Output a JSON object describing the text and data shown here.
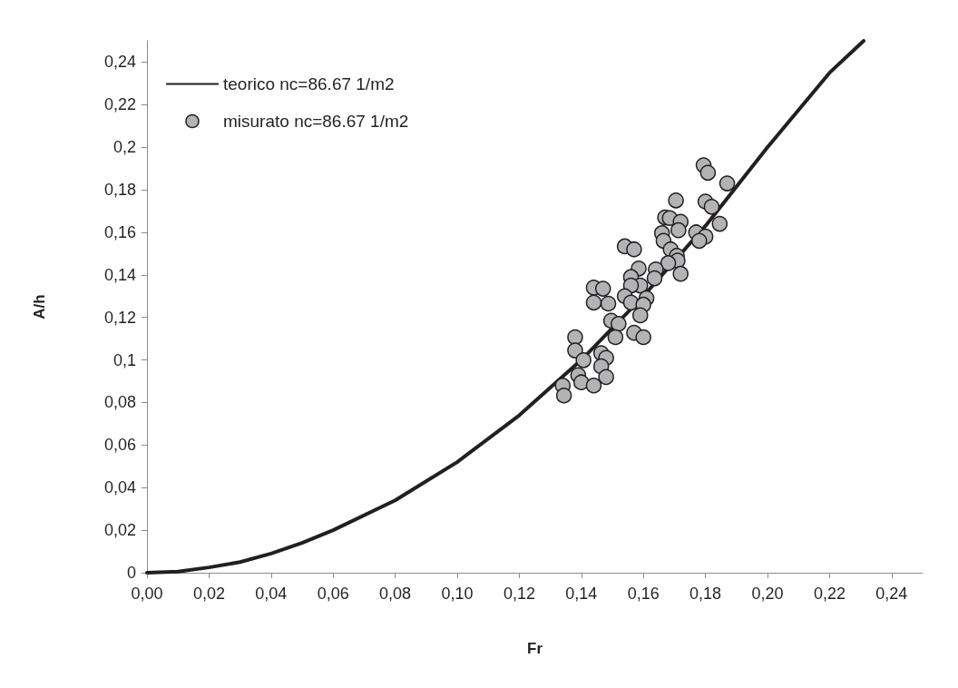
{
  "chart_data": {
    "type": "scatter",
    "xlabel": "Fr",
    "ylabel": "A/h",
    "xlim": [
      0,
      0.25
    ],
    "ylim": [
      0,
      0.25
    ],
    "xticks": [
      {
        "value": 0,
        "label": "0,00"
      },
      {
        "value": 0.02,
        "label": "0,02"
      },
      {
        "value": 0.04,
        "label": "0,04"
      },
      {
        "value": 0.06,
        "label": "0,06"
      },
      {
        "value": 0.08,
        "label": "0,08"
      },
      {
        "value": 0.1,
        "label": "0,10"
      },
      {
        "value": 0.12,
        "label": "0,12"
      },
      {
        "value": 0.14,
        "label": "0,14"
      },
      {
        "value": 0.16,
        "label": "0,16"
      },
      {
        "value": 0.18,
        "label": "0,18"
      },
      {
        "value": 0.2,
        "label": "0,20"
      },
      {
        "value": 0.22,
        "label": "0,22"
      },
      {
        "value": 0.24,
        "label": "0,24"
      }
    ],
    "yticks": [
      0,
      {
        "value": 0.02,
        "label": "0,02"
      },
      {
        "value": 0.04,
        "label": "0,04"
      },
      {
        "value": 0.06,
        "label": "0,06"
      },
      {
        "value": 0.08,
        "label": "0,08"
      },
      {
        "value": 0.1,
        "label": "0,1"
      },
      {
        "value": 0.12,
        "label": "0,12"
      },
      {
        "value": 0.14,
        "label": "0,14"
      },
      {
        "value": 0.16,
        "label": "0,16"
      },
      {
        "value": 0.18,
        "label": "0,18"
      },
      {
        "value": 0.2,
        "label": "0,2"
      },
      {
        "value": 0.22,
        "label": "0,22"
      },
      {
        "value": 0.24,
        "label": "0,24"
      }
    ],
    "grid": false,
    "legend": "top left",
    "marker": "circle",
    "series": [
      {
        "name": "teorico nc=86.67 1/m2",
        "type": "line",
        "color": "#231f20",
        "line_style": "solid",
        "marker": "none",
        "x": [
          0,
          0.01,
          0.02,
          0.03,
          0.04,
          0.05,
          0.06,
          0.08,
          0.1,
          0.12,
          0.14,
          0.16,
          0.18,
          0.2,
          0.22,
          0.231
        ],
        "values": [
          0,
          0.0005,
          0.0025,
          0.005,
          0.009,
          0.014,
          0.02,
          0.034,
          0.052,
          0.074,
          0.1,
          0.13,
          0.163,
          0.2,
          0.235,
          0.25
        ]
      },
      {
        "name": "misurato nc=86.67 1/m2",
        "color": "#b3b3b6",
        "x": [
          0.1794,
          0.1808,
          0.187,
          0.1705,
          0.18,
          0.182,
          0.167,
          0.1685,
          0.172,
          0.1846,
          0.166,
          0.1713,
          0.177,
          0.18,
          0.178,
          0.1665,
          0.154,
          0.157,
          0.1688,
          0.1708,
          0.171,
          0.168,
          0.172,
          0.164,
          0.1585,
          0.156,
          0.1636,
          0.159,
          0.156,
          0.144,
          0.147,
          0.161,
          0.154,
          0.156,
          0.144,
          0.1487,
          0.16,
          0.159,
          0.1496,
          0.152,
          0.151,
          0.157,
          0.16,
          0.138,
          0.138,
          0.1464,
          0.148,
          0.1407,
          0.1464,
          0.139,
          0.148,
          0.14,
          0.144,
          0.134,
          0.1344
        ],
        "values": [
          0.1915,
          0.188,
          0.183,
          0.175,
          0.1745,
          0.172,
          0.167,
          0.1667,
          0.165,
          0.164,
          0.1596,
          0.161,
          0.16,
          0.158,
          0.156,
          0.156,
          0.1534,
          0.152,
          0.152,
          0.149,
          0.1467,
          0.1455,
          0.1405,
          0.1426,
          0.143,
          0.139,
          0.1384,
          0.135,
          0.135,
          0.134,
          0.1335,
          0.129,
          0.13,
          0.127,
          0.127,
          0.1265,
          0.126,
          0.121,
          0.1185,
          0.117,
          0.1107,
          0.1128,
          0.1107,
          0.1107,
          0.1045,
          0.1032,
          0.101,
          0.0999,
          0.097,
          0.0929,
          0.092,
          0.0895,
          0.088,
          0.088,
          0.0833
        ]
      }
    ]
  }
}
